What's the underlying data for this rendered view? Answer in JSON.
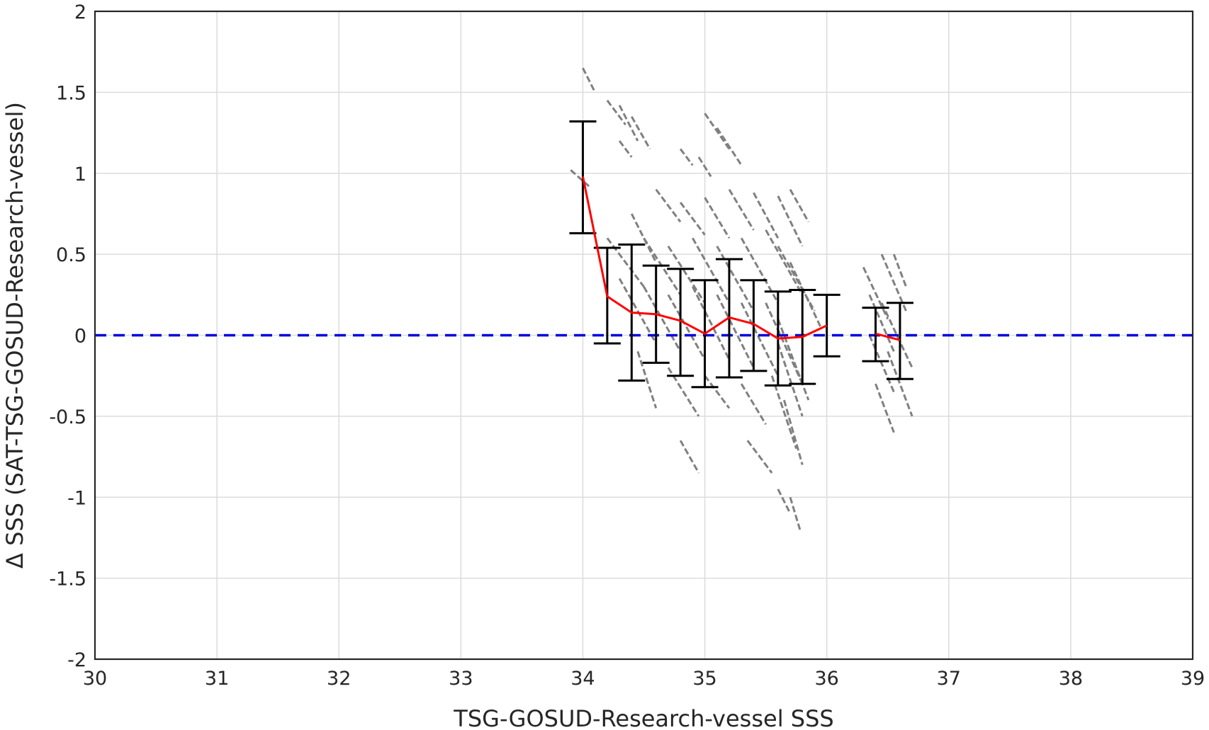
{
  "chart_data": {
    "type": "line",
    "title": "",
    "xlabel": "TSG-GOSUD-Research-vessel SSS",
    "ylabel": "Δ SSS (SAT-TSG-GOSUD-Research-vessel)",
    "xlim": [
      30,
      39
    ],
    "ylim": [
      -2,
      2
    ],
    "xticks": [
      30,
      31,
      32,
      33,
      34,
      35,
      36,
      37,
      38,
      39
    ],
    "yticks": [
      2,
      1.5,
      1,
      0.5,
      0,
      -0.5,
      -1,
      -1.5,
      -2
    ],
    "xtick_labels": [
      "30",
      "31",
      "32",
      "33",
      "34",
      "35",
      "36",
      "37",
      "38",
      "39"
    ],
    "ytick_labels": [
      "2",
      "1.5",
      "1",
      "0.5",
      "0",
      "-0.5",
      "-1",
      "-1.5",
      "-2"
    ],
    "grid": true,
    "legend": "none",
    "colors": {
      "scatter": "#808080",
      "mean_line": "#ff0000",
      "error_bars": "#000000",
      "zero_line": "#0000dd"
    },
    "series": [
      {
        "type": "line",
        "x": [
          34.0,
          34.2,
          34.4,
          34.6,
          34.8,
          35.0,
          35.2,
          35.4,
          35.6,
          35.8,
          36.0
        ],
        "y": [
          0.98,
          0.24,
          0.14,
          0.13,
          0.09,
          0.01,
          0.11,
          0.07,
          -0.02,
          -0.01,
          0.06
        ]
      },
      {
        "type": "line",
        "x": [
          36.4,
          36.6
        ],
        "y": [
          0.01,
          -0.03
        ]
      },
      {
        "type": "errorbar",
        "x": [
          34.0,
          34.2,
          34.4,
          34.6,
          34.8,
          35.0,
          35.2,
          35.4,
          35.6,
          35.8,
          36.0,
          36.4,
          36.6
        ],
        "upper": [
          1.32,
          0.54,
          0.56,
          0.43,
          0.41,
          0.34,
          0.47,
          0.34,
          0.27,
          0.28,
          0.25,
          0.17,
          0.2
        ],
        "lower": [
          0.63,
          -0.05,
          -0.28,
          -0.17,
          -0.25,
          -0.32,
          -0.26,
          -0.22,
          -0.31,
          -0.3,
          -0.13,
          -0.16,
          -0.27
        ]
      },
      {
        "type": "hline",
        "y": 0
      },
      {
        "type": "scatter",
        "shape": "short diagonal streaks",
        "x_range": [
          33.9,
          36.7
        ],
        "y_range": [
          -1.2,
          1.65
        ],
        "segments": [
          [
            34.0,
            1.65,
            34.1,
            1.5
          ],
          [
            34.2,
            1.45,
            34.35,
            1.3
          ],
          [
            34.3,
            1.42,
            34.45,
            1.2
          ],
          [
            34.4,
            1.35,
            34.55,
            1.15
          ],
          [
            34.3,
            1.2,
            34.4,
            1.1
          ],
          [
            35.0,
            1.37,
            35.2,
            1.15
          ],
          [
            35.1,
            1.28,
            35.3,
            1.05
          ],
          [
            34.8,
            1.15,
            34.9,
            1.05
          ],
          [
            34.95,
            1.1,
            35.05,
            0.98
          ],
          [
            33.9,
            1.02,
            34.05,
            0.92
          ],
          [
            34.6,
            0.9,
            34.8,
            0.7
          ],
          [
            34.8,
            0.82,
            35.0,
            0.62
          ],
          [
            35.0,
            0.85,
            35.2,
            0.6
          ],
          [
            35.2,
            0.9,
            35.4,
            0.65
          ],
          [
            35.4,
            0.88,
            35.6,
            0.6
          ],
          [
            35.6,
            0.86,
            35.8,
            0.55
          ],
          [
            35.7,
            0.9,
            35.85,
            0.7
          ],
          [
            34.2,
            0.6,
            34.5,
            0.3
          ],
          [
            34.4,
            0.75,
            34.6,
            0.45
          ],
          [
            34.5,
            0.6,
            34.8,
            0.25
          ],
          [
            34.7,
            0.55,
            35.0,
            0.2
          ],
          [
            34.9,
            0.6,
            35.2,
            0.2
          ],
          [
            35.1,
            0.55,
            35.4,
            0.15
          ],
          [
            35.3,
            0.6,
            35.6,
            0.2
          ],
          [
            35.5,
            0.65,
            35.8,
            0.25
          ],
          [
            35.6,
            0.55,
            35.9,
            0.15
          ],
          [
            35.7,
            0.45,
            35.95,
            0.05
          ],
          [
            34.3,
            0.35,
            34.6,
            -0.05
          ],
          [
            34.5,
            0.3,
            34.8,
            -0.1
          ],
          [
            34.7,
            0.25,
            35.0,
            -0.15
          ],
          [
            34.9,
            0.3,
            35.2,
            -0.15
          ],
          [
            35.1,
            0.25,
            35.4,
            -0.2
          ],
          [
            35.3,
            0.2,
            35.6,
            -0.25
          ],
          [
            35.5,
            0.2,
            35.8,
            -0.3
          ],
          [
            35.6,
            0.1,
            35.85,
            -0.4
          ],
          [
            35.6,
            -0.05,
            35.8,
            -0.5
          ],
          [
            35.55,
            -0.25,
            35.75,
            -0.7
          ],
          [
            35.65,
            -0.4,
            35.8,
            -0.8
          ],
          [
            34.45,
            -0.1,
            34.6,
            -0.45
          ],
          [
            34.7,
            -0.2,
            34.95,
            -0.5
          ],
          [
            35.0,
            -0.25,
            35.2,
            -0.45
          ],
          [
            35.3,
            -0.3,
            35.5,
            -0.55
          ],
          [
            34.8,
            -0.65,
            34.95,
            -0.85
          ],
          [
            35.35,
            -0.65,
            35.55,
            -0.85
          ],
          [
            35.7,
            -1.0,
            35.78,
            -1.2
          ],
          [
            35.6,
            -0.95,
            35.7,
            -1.1
          ],
          [
            36.3,
            0.42,
            36.5,
            0.1
          ],
          [
            36.45,
            0.5,
            36.65,
            0.15
          ],
          [
            36.35,
            0.25,
            36.55,
            -0.1
          ],
          [
            36.45,
            0.2,
            36.7,
            -0.2
          ],
          [
            36.35,
            0.0,
            36.55,
            -0.35
          ],
          [
            36.5,
            -0.1,
            36.7,
            -0.5
          ],
          [
            36.4,
            -0.3,
            36.55,
            -0.6
          ],
          [
            36.55,
            0.5,
            36.65,
            0.3
          ]
        ]
      }
    ]
  }
}
